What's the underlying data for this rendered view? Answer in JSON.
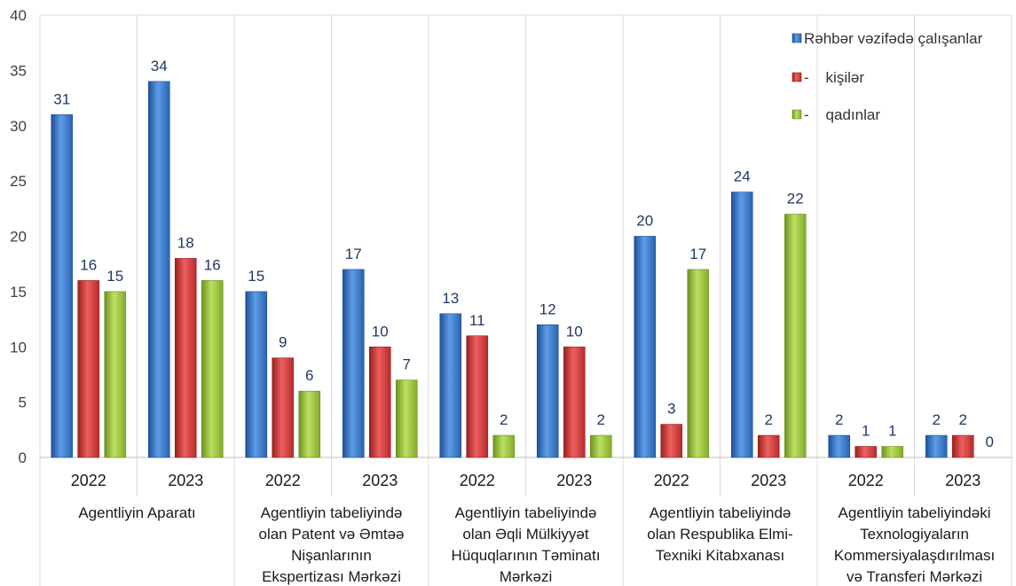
{
  "chart_data": {
    "type": "bar",
    "title": "",
    "xlabel": "",
    "ylabel": "",
    "ylim": [
      0,
      40
    ],
    "yticks": [
      0,
      5,
      10,
      15,
      20,
      25,
      30,
      35,
      40
    ],
    "grid": "vertical-lines-between-categories",
    "legend_position": "top-right",
    "groups": [
      {
        "label": [
          "Agentliyin Aparatı"
        ],
        "years": [
          "2022",
          "2023"
        ]
      },
      {
        "label": [
          "Agentliyin tabeliyində",
          "olan Patent və Əmtəə",
          "Nişanlarının",
          "Ekspertizası Mərkəzi"
        ],
        "years": [
          "2022",
          "2023"
        ]
      },
      {
        "label": [
          "Agentliyin tabeliyində",
          "olan  Əqli Mülkiyyət",
          "Hüquqlarının Təminatı",
          "Mərkəzi"
        ],
        "years": [
          "2022",
          "2023"
        ]
      },
      {
        "label": [
          "Agentliyin tabeliyində",
          "olan Respublika Elmi-",
          "Texniki Kitabxanası"
        ],
        "years": [
          "2022",
          "2023"
        ]
      },
      {
        "label": [
          "Agentliyin tabeliyindəki",
          "Texnologiyaların",
          "Kommersiyalaşdırılması",
          "və Transferi Mərkəzi"
        ],
        "years": [
          "2022",
          "2023"
        ]
      }
    ],
    "series": [
      {
        "name": "Rəhbər vəzifədə çalışanlar",
        "color": "#3d7fd0",
        "values": [
          31,
          34,
          15,
          17,
          13,
          12,
          20,
          24,
          2,
          2
        ]
      },
      {
        "name": "-    kişilər",
        "color": "#d43a3a",
        "values": [
          16,
          18,
          9,
          10,
          11,
          10,
          3,
          2,
          1,
          2
        ]
      },
      {
        "name": "-    qadınlar",
        "color": "#9bc53d",
        "values": [
          15,
          16,
          6,
          7,
          2,
          2,
          17,
          22,
          1,
          0
        ]
      }
    ]
  }
}
